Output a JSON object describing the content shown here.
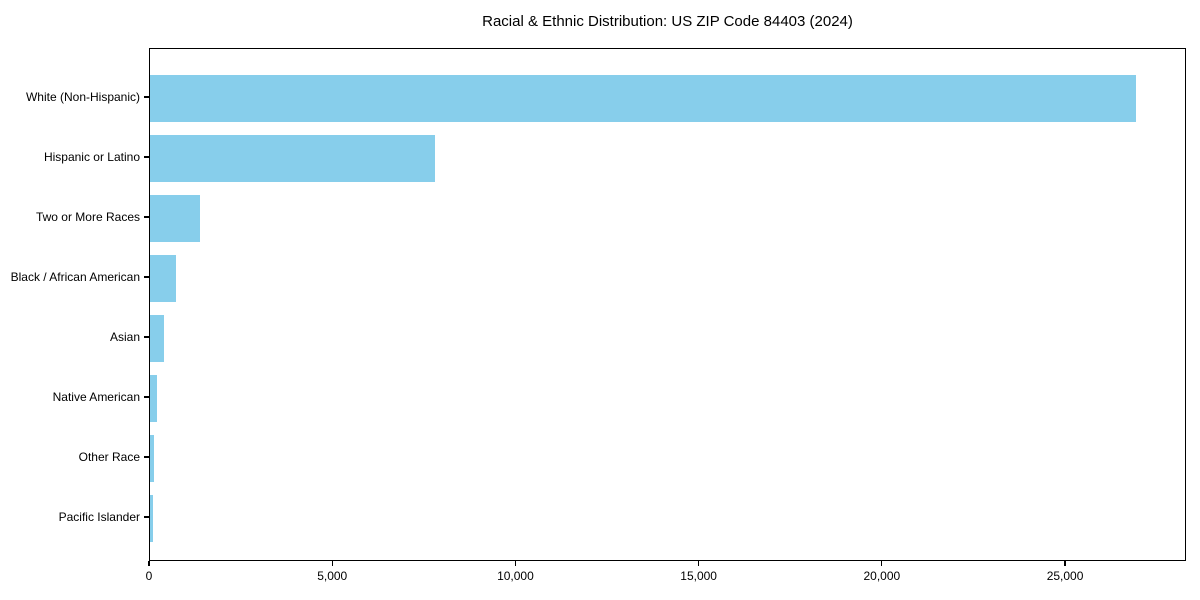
{
  "title": "Racial & Ethnic Distribution: US ZIP Code 84403 (2024)",
  "colors": {
    "bar": "#87CEEB",
    "text": "#000000",
    "spine": "#000000",
    "background": "#ffffff"
  },
  "chart_data": {
    "type": "bar",
    "orientation": "horizontal",
    "title": "Racial & Ethnic Distribution: US ZIP Code 84403 (2024)",
    "xlabel": "",
    "ylabel": "",
    "categories": [
      "White (Non-Hispanic)",
      "Hispanic or Latino",
      "Two or More Races",
      "Black / African American",
      "Asian",
      "Native American",
      "Other Race",
      "Pacific Islander"
    ],
    "values": [
      26950,
      7790,
      1370,
      720,
      380,
      200,
      100,
      95
    ],
    "bar_color": "#87CEEB",
    "xlim": [
      0,
      28300
    ],
    "x_ticks": [
      0,
      5000,
      10000,
      15000,
      20000,
      25000
    ],
    "x_tick_labels": [
      "0",
      "5,000",
      "10,000",
      "15,000",
      "20,000",
      "25,000"
    ],
    "grid": false,
    "legend": false,
    "value_labels": false
  }
}
